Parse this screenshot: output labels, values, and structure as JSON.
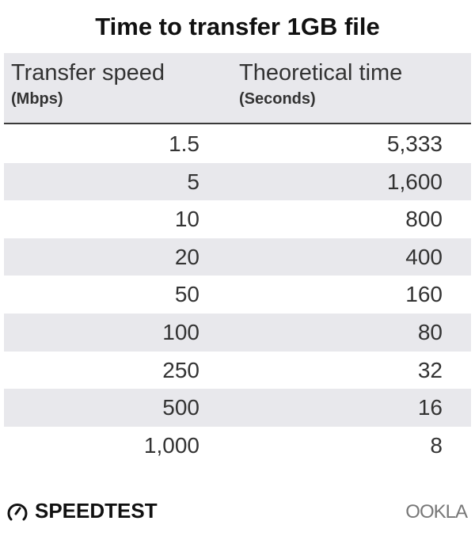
{
  "chart_data": {
    "type": "table",
    "title": "Time to transfer 1GB file",
    "columns": [
      {
        "label": "Transfer speed",
        "unit": "(Mbps)"
      },
      {
        "label": "Theoretical time",
        "unit": "(Seconds)"
      }
    ],
    "rows": [
      [
        "1.5",
        "5,333"
      ],
      [
        "5",
        "1,600"
      ],
      [
        "10",
        "800"
      ],
      [
        "20",
        "400"
      ],
      [
        "50",
        "160"
      ],
      [
        "100",
        "80"
      ],
      [
        "250",
        "32"
      ],
      [
        "500",
        "16"
      ],
      [
        "1,000",
        "8"
      ]
    ],
    "stripe_color": "#e8e8ec"
  },
  "footer": {
    "brand": "SPEEDTEST",
    "brand_icon": "gauge-icon",
    "partner": "OOKLA"
  }
}
